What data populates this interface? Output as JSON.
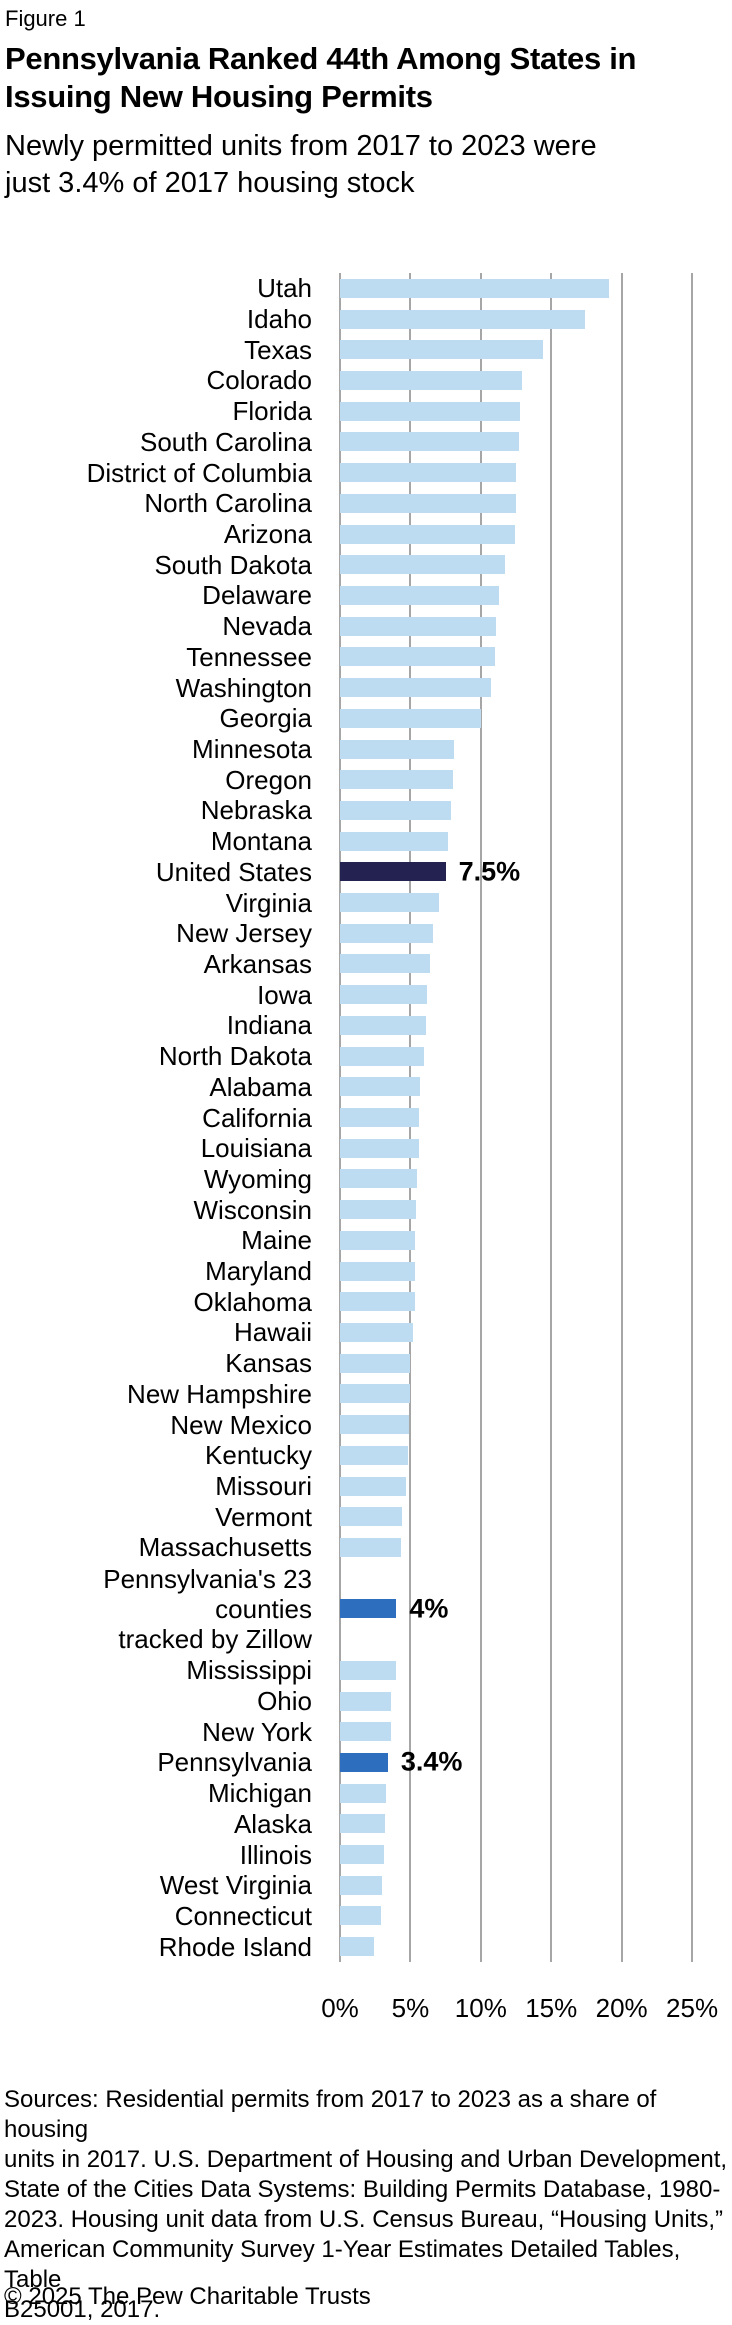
{
  "header": {
    "figure_label": "Figure 1",
    "title_lines": [
      "Pennsylvania Ranked 44th Among States in",
      "Issuing New Housing Permits"
    ],
    "subtitle_lines": [
      "Newly permitted units from 2017 to 2023 were",
      "just 3.4% of 2017 housing stock"
    ]
  },
  "chart_data": {
    "type": "bar",
    "orientation": "horizontal",
    "xlim": [
      0,
      25
    ],
    "grid": true,
    "x_ticks": [
      {
        "label": "0%",
        "value": 0
      },
      {
        "label": "5%",
        "value": 5
      },
      {
        "label": "10%",
        "value": 10
      },
      {
        "label": "15%",
        "value": 15
      },
      {
        "label": "20%",
        "value": 20
      },
      {
        "label": "25%",
        "value": 25
      }
    ],
    "colors": {
      "light": "#BDDBF1",
      "medium": "#2D6FBE",
      "navy": "#232250",
      "gridline": "#A6A6A6"
    },
    "rows": [
      {
        "label": "Utah",
        "value": 19.1
      },
      {
        "label": "Idaho",
        "value": 17.4
      },
      {
        "label": "Texas",
        "value": 14.4
      },
      {
        "label": "Colorado",
        "value": 12.9
      },
      {
        "label": "Florida",
        "value": 12.8
      },
      {
        "label": "South Carolina",
        "value": 12.7
      },
      {
        "label": "District of Columbia",
        "value": 12.5
      },
      {
        "label": "North Carolina",
        "value": 12.5
      },
      {
        "label": "Arizona",
        "value": 12.4
      },
      {
        "label": "South Dakota",
        "value": 11.7
      },
      {
        "label": "Delaware",
        "value": 11.3
      },
      {
        "label": "Nevada",
        "value": 11.1
      },
      {
        "label": "Tennessee",
        "value": 11.0
      },
      {
        "label": "Washington",
        "value": 10.7
      },
      {
        "label": "Georgia",
        "value": 10.0
      },
      {
        "label": "Minnesota",
        "value": 8.1
      },
      {
        "label": "Oregon",
        "value": 8.0
      },
      {
        "label": "Nebraska",
        "value": 7.9
      },
      {
        "label": "Montana",
        "value": 7.7
      },
      {
        "label": "United States",
        "value": 7.5,
        "color": "navy",
        "value_label": "7.5%"
      },
      {
        "label": "Virginia",
        "value": 7.0
      },
      {
        "label": "New Jersey",
        "value": 6.6
      },
      {
        "label": "Arkansas",
        "value": 6.4
      },
      {
        "label": "Iowa",
        "value": 6.2
      },
      {
        "label": "Indiana",
        "value": 6.1
      },
      {
        "label": "North Dakota",
        "value": 6.0
      },
      {
        "label": "Alabama",
        "value": 5.7
      },
      {
        "label": "California",
        "value": 5.6
      },
      {
        "label": "Louisiana",
        "value": 5.6
      },
      {
        "label": "Wyoming",
        "value": 5.5
      },
      {
        "label": "Wisconsin",
        "value": 5.4
      },
      {
        "label": "Maine",
        "value": 5.3
      },
      {
        "label": "Maryland",
        "value": 5.3
      },
      {
        "label": "Oklahoma",
        "value": 5.3
      },
      {
        "label": "Hawaii",
        "value": 5.2
      },
      {
        "label": "Kansas",
        "value": 5.0
      },
      {
        "label": "New Hampshire",
        "value": 5.0
      },
      {
        "label": "New Mexico",
        "value": 4.9
      },
      {
        "label": "Kentucky",
        "value": 4.8
      },
      {
        "label": "Missouri",
        "value": 4.7
      },
      {
        "label": "Vermont",
        "value": 4.4
      },
      {
        "label": "Massachusetts",
        "value": 4.3
      },
      {
        "label": "Pennsylvania's 23 counties\ntracked by Zillow",
        "value": 4.0,
        "color": "medium",
        "value_label": "4%",
        "gap_before": true
      },
      {
        "label": "Mississippi",
        "value": 4.0,
        "gap_before": true
      },
      {
        "label": "Ohio",
        "value": 3.6
      },
      {
        "label": "New York",
        "value": 3.6
      },
      {
        "label": "Pennsylvania",
        "value": 3.4,
        "color": "medium",
        "value_label": "3.4%"
      },
      {
        "label": "Michigan",
        "value": 3.3
      },
      {
        "label": "Alaska",
        "value": 3.2
      },
      {
        "label": "Illinois",
        "value": 3.1
      },
      {
        "label": "West Virginia",
        "value": 3.0
      },
      {
        "label": "Connecticut",
        "value": 2.9
      },
      {
        "label": "Rhode Island",
        "value": 2.4
      }
    ]
  },
  "footer": {
    "sources_lines": [
      "Sources: Residential permits from 2017 to 2023 as a share of housing",
      "units in 2017. U.S. Department of Housing and Urban Development,",
      "State of the Cities Data Systems: Building Permits Database, 1980-",
      "2023. Housing unit data from U.S. Census Bureau, “Housing Units,”",
      "American Community Survey 1-Year Estimates Detailed Tables, Table",
      "B25001, 2017."
    ],
    "copyright": "© 2025 The Pew Charitable Trusts"
  }
}
